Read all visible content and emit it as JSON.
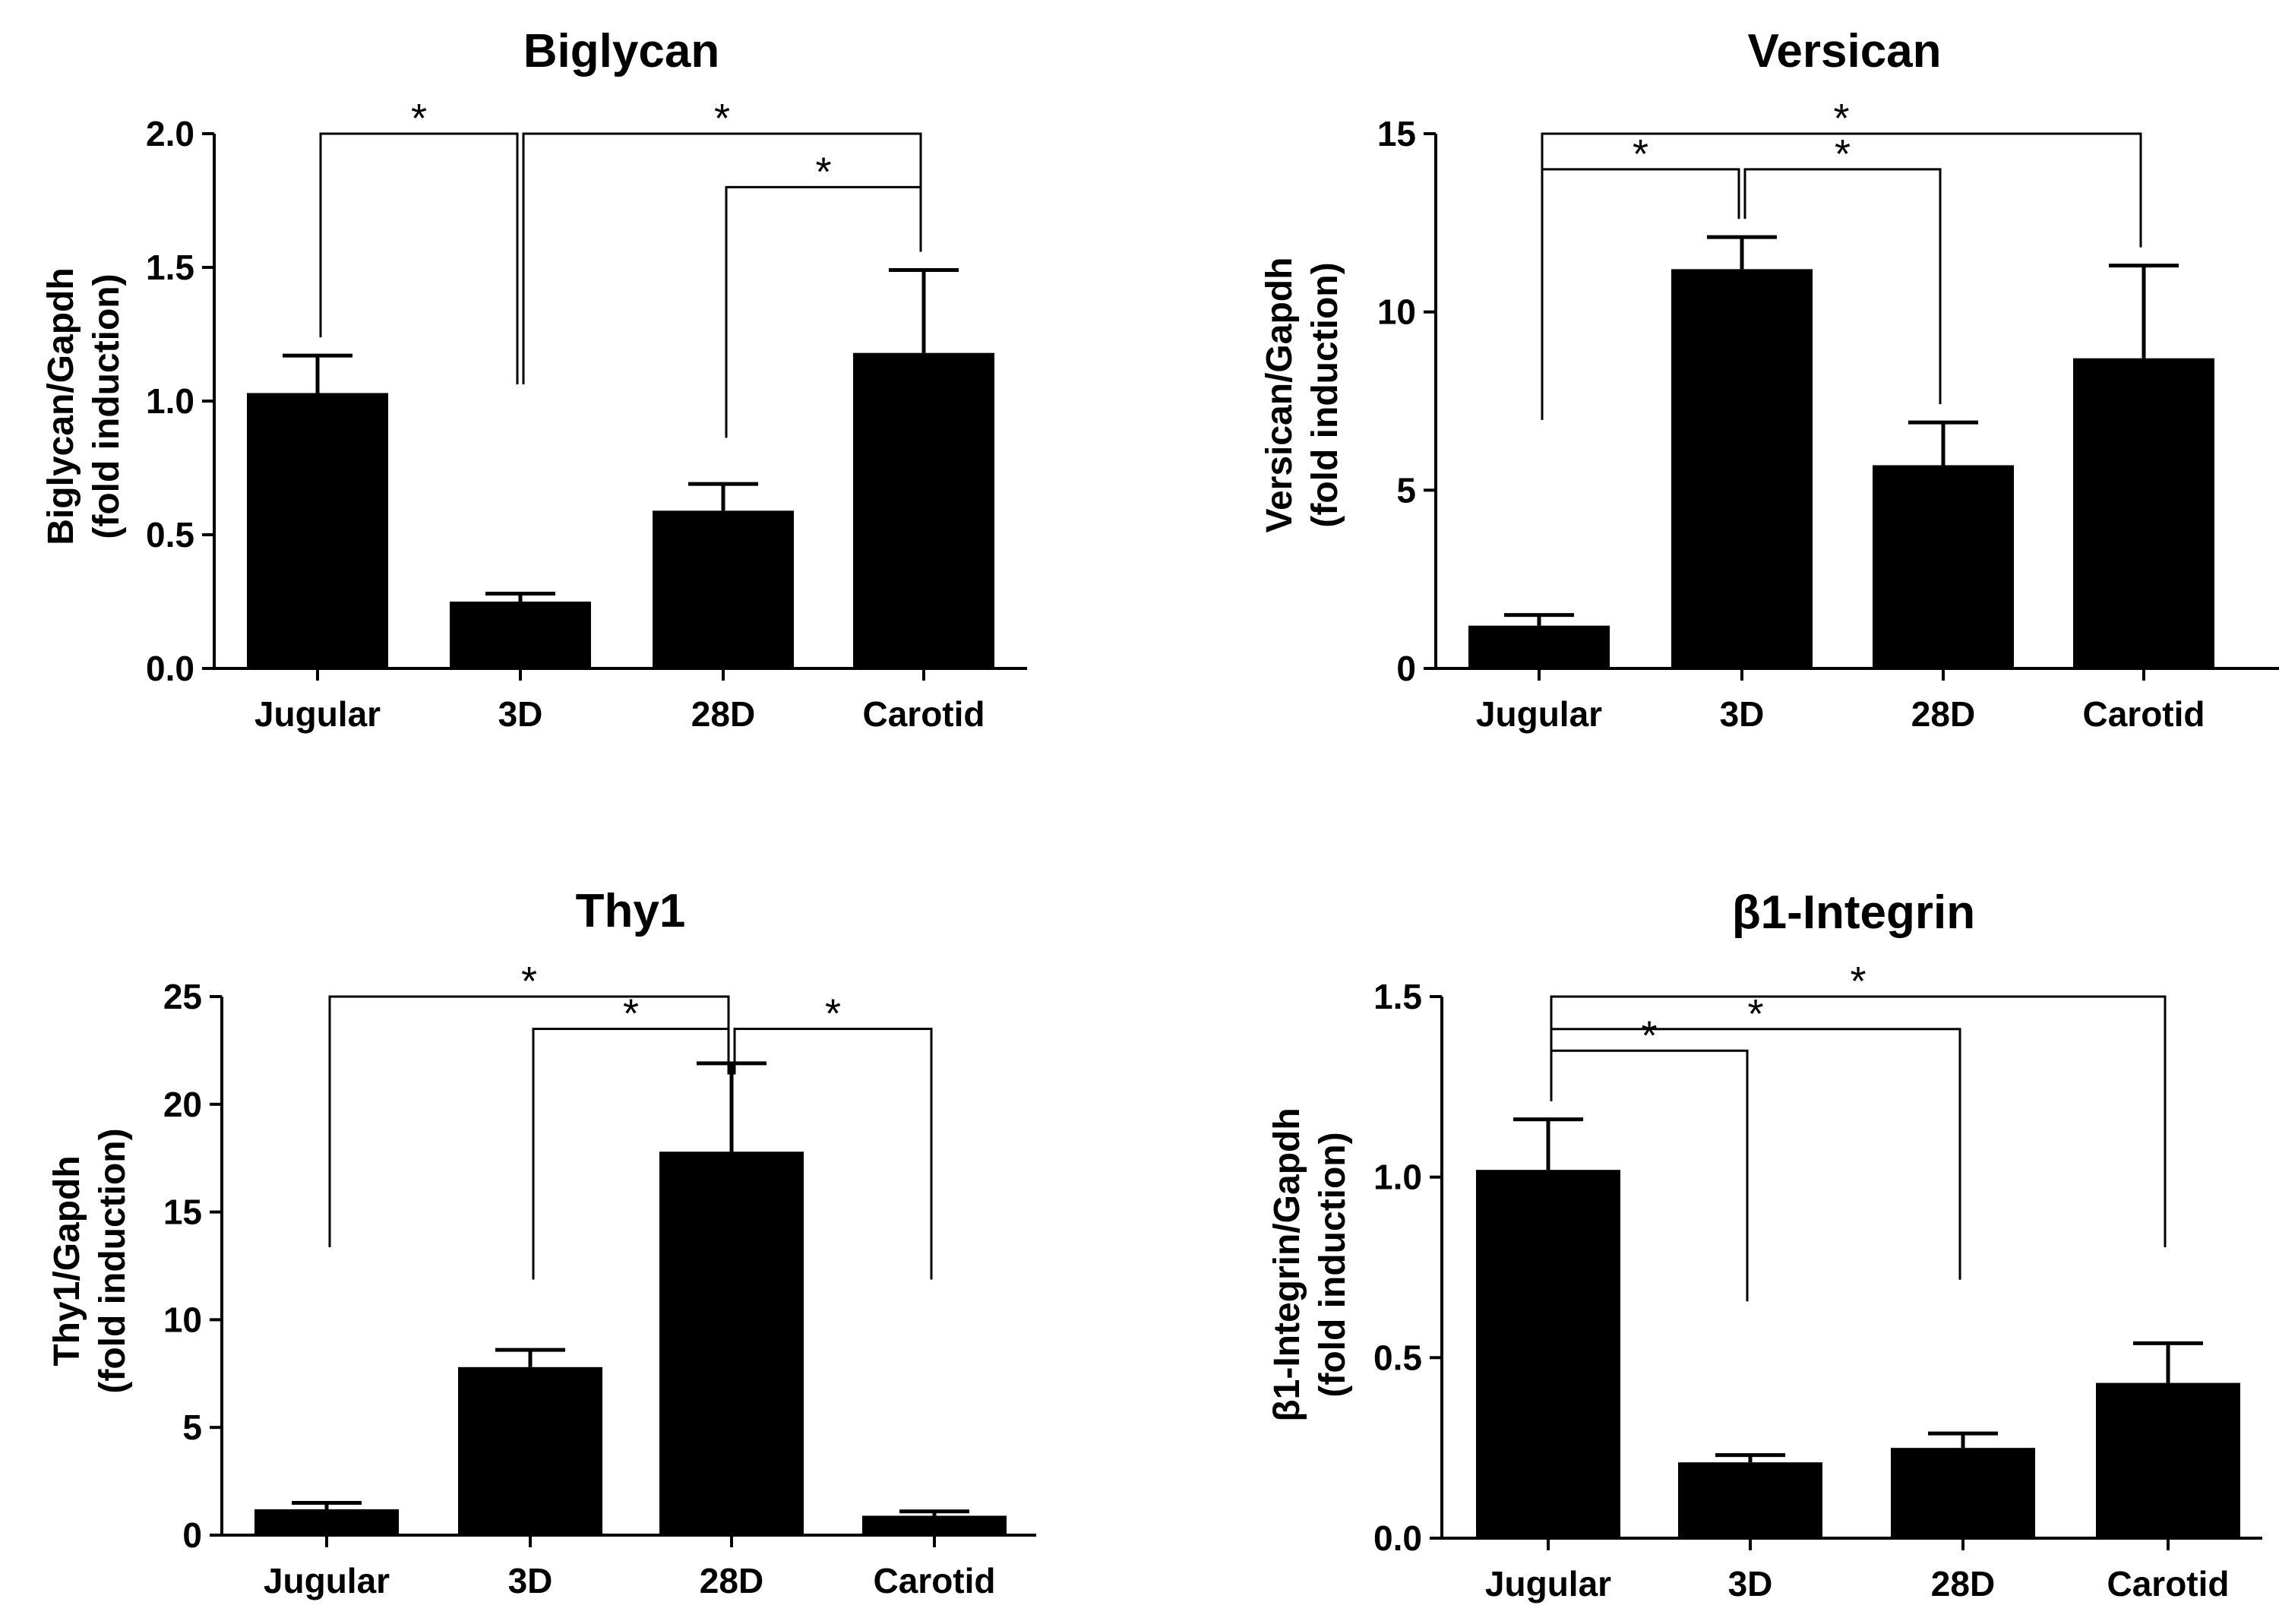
{
  "chart_data": [
    {
      "type": "bar",
      "title": "Biglycan",
      "ylabel_line1": "Biglycan/Gapdh",
      "ylabel_line2": "(fold induction)",
      "categories": [
        "Jugular",
        "3D",
        "28D",
        "Carotid"
      ],
      "values": [
        1.03,
        0.25,
        0.59,
        1.18
      ],
      "errors": [
        0.14,
        0.03,
        0.1,
        0.31
      ],
      "ylim": [
        0,
        2.0
      ],
      "yticks": [
        0.0,
        0.5,
        1.0,
        1.5,
        2.0
      ],
      "ytick_labels": [
        "0.0",
        "0.5",
        "1.0",
        "1.5",
        "2.0"
      ],
      "significance": [
        {
          "from": 0,
          "to": 1,
          "level": 2.0,
          "label": "*"
        },
        {
          "from": 1,
          "to": 3,
          "level": 2.0,
          "label": "*"
        },
        {
          "from": 2,
          "to": 3,
          "level": 1.8,
          "label": "*"
        }
      ]
    },
    {
      "type": "bar",
      "title": "Versican",
      "ylabel_line1": "Versican/Gapdh",
      "ylabel_line2": "(fold induction)",
      "categories": [
        "Jugular",
        "3D",
        "28D",
        "Carotid"
      ],
      "values": [
        1.2,
        11.2,
        5.7,
        8.7
      ],
      "errors": [
        0.3,
        0.9,
        1.2,
        2.6
      ],
      "ylim": [
        0,
        15
      ],
      "yticks": [
        0,
        5,
        10,
        15
      ],
      "ytick_labels": [
        "0",
        "5",
        "10",
        "15"
      ],
      "significance": [
        {
          "from": 0,
          "to": 3,
          "level": 15.0,
          "label": "*"
        },
        {
          "from": 0,
          "to": 1,
          "level": 14.0,
          "label": "*"
        },
        {
          "from": 1,
          "to": 2,
          "level": 14.0,
          "label": "*"
        }
      ]
    },
    {
      "type": "bar",
      "title": "Thy1",
      "ylabel_line1": "Thy1/Gapdh",
      "ylabel_line2": "(fold induction)",
      "categories": [
        "Jugular",
        "3D",
        "28D",
        "Carotid"
      ],
      "values": [
        1.2,
        7.8,
        17.8,
        0.9
      ],
      "errors": [
        0.3,
        0.8,
        4.1,
        0.2
      ],
      "ylim": [
        0,
        25
      ],
      "yticks": [
        0,
        5,
        10,
        15,
        20,
        25
      ],
      "ytick_labels": [
        "0",
        "5",
        "10",
        "15",
        "20",
        "25"
      ],
      "significance": [
        {
          "from": 0,
          "to": 2,
          "level": 25.0,
          "label": "*"
        },
        {
          "from": 1,
          "to": 2,
          "level": 23.5,
          "label": "*"
        },
        {
          "from": 2,
          "to": 3,
          "level": 23.5,
          "label": "*"
        }
      ]
    },
    {
      "type": "bar",
      "title": "β1-Integrin",
      "ylabel_line1": "β1-Integrin/Gapdh",
      "ylabel_line2": "(fold induction)",
      "categories": [
        "Jugular",
        "3D",
        "28D",
        "Carotid"
      ],
      "values": [
        1.02,
        0.21,
        0.25,
        0.43
      ],
      "errors": [
        0.14,
        0.02,
        0.04,
        0.11
      ],
      "ylim": [
        0,
        1.5
      ],
      "yticks": [
        0.0,
        0.5,
        1.0,
        1.5
      ],
      "ytick_labels": [
        "0.0",
        "0.5",
        "1.0",
        "1.5"
      ],
      "significance": [
        {
          "from": 0,
          "to": 3,
          "level": 1.5,
          "label": "*"
        },
        {
          "from": 0,
          "to": 2,
          "level": 1.41,
          "label": "*"
        },
        {
          "from": 0,
          "to": 1,
          "level": 1.35,
          "label": "*"
        }
      ]
    }
  ]
}
